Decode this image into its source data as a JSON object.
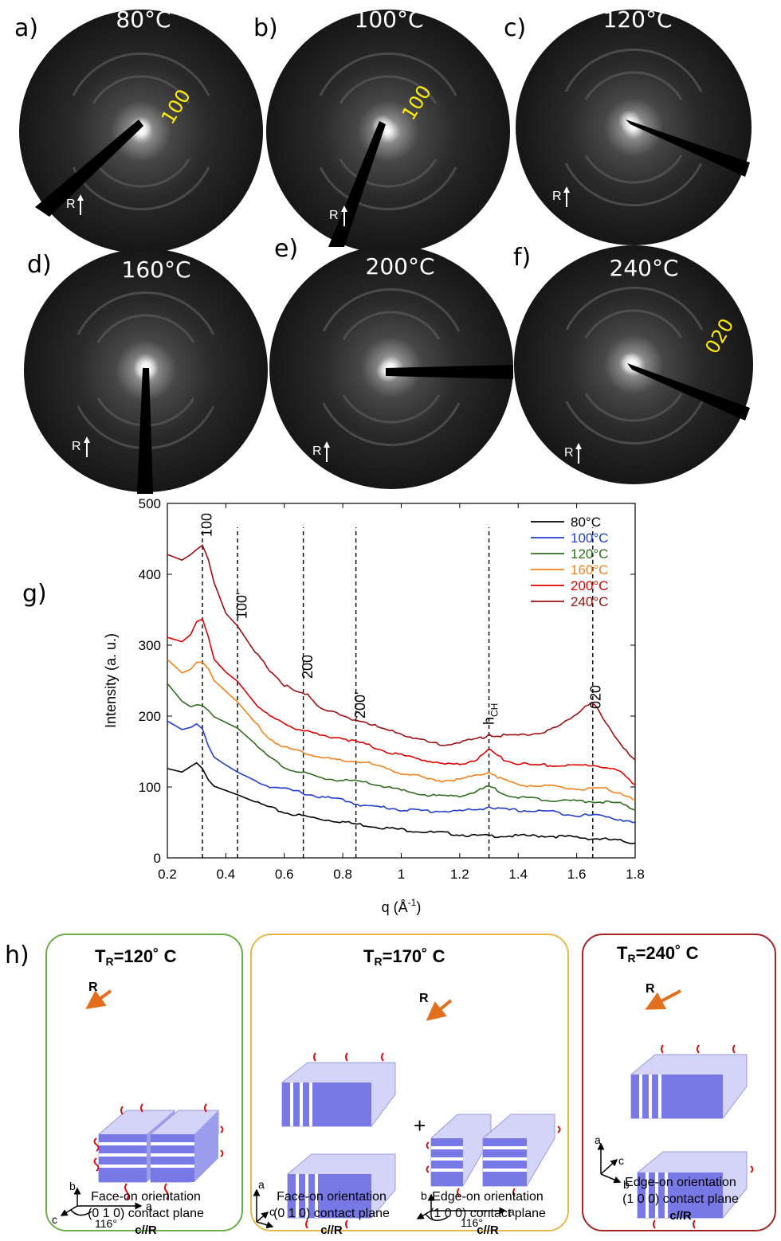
{
  "diffraction_panels": [
    {
      "letter": "a)",
      "temp": "80°C",
      "peak": "100"
    },
    {
      "letter": "b)",
      "temp": "100°C",
      "peak": "100"
    },
    {
      "letter": "c)",
      "temp": "120°C",
      "peak": ""
    },
    {
      "letter": "d)",
      "temp": "160°C",
      "peak": ""
    },
    {
      "letter": "e)",
      "temp": "200°C",
      "peak": ""
    },
    {
      "letter": "f)",
      "temp": "240°C",
      "peak": "020"
    }
  ],
  "rubbing_label": "R",
  "chart_data": {
    "panel_label": "g)",
    "type": "line",
    "xlabel": "q (Å-1)",
    "ylabel": "Intensity (a. u.)",
    "xlim": [
      0.2,
      1.8
    ],
    "ylim": [
      0,
      500
    ],
    "xticks": [
      "0.2",
      "0.4",
      "0.6",
      "0.8",
      "1",
      "1.2",
      "1.4",
      "1.6",
      "1.8"
    ],
    "yticks": [
      "0",
      "100",
      "200",
      "300",
      "400",
      "500"
    ],
    "x": [
      0.2,
      0.25,
      0.28,
      0.3,
      0.32,
      0.34,
      0.36,
      0.4,
      0.44,
      0.5,
      0.55,
      0.6,
      0.65,
      0.68,
      0.72,
      0.8,
      0.84,
      0.88,
      0.95,
      1.0,
      1.05,
      1.1,
      1.15,
      1.2,
      1.25,
      1.28,
      1.3,
      1.32,
      1.35,
      1.4,
      1.45,
      1.5,
      1.55,
      1.6,
      1.63,
      1.65,
      1.67,
      1.7,
      1.75,
      1.8
    ],
    "series": [
      {
        "name": "80°C",
        "color": "#000000",
        "values": [
          126,
          121,
          129,
          134,
          126,
          110,
          101,
          95,
          89,
          79,
          71,
          64,
          60,
          58,
          55,
          51,
          48,
          46,
          42,
          40,
          38,
          36,
          35,
          33,
          31,
          31,
          31,
          31,
          31,
          31,
          31,
          31,
          30,
          29,
          28,
          27,
          27,
          26,
          24,
          21
        ]
      },
      {
        "name": "100°C",
        "color": "#1f3fc8",
        "values": [
          193,
          181,
          184,
          189,
          182,
          158,
          142,
          131,
          121,
          109,
          101,
          97,
          93,
          90,
          86,
          82,
          77,
          73,
          71,
          68,
          67,
          66,
          66,
          66,
          68,
          70,
          72,
          70,
          68,
          67,
          66,
          66,
          63,
          60,
          60,
          60,
          60,
          59,
          54,
          49
        ]
      },
      {
        "name": "120°C",
        "color": "#2e6d1e",
        "values": [
          246,
          221,
          213,
          216,
          215,
          208,
          199,
          191,
          183,
          161,
          141,
          128,
          121,
          118,
          113,
          109,
          108,
          106,
          100,
          95,
          91,
          88,
          87,
          88,
          92,
          97,
          101,
          97,
          91,
          85,
          84,
          82,
          81,
          80,
          80,
          80,
          79,
          79,
          76,
          68
        ]
      },
      {
        "name": "160°C",
        "color": "#f0821e",
        "values": [
          280,
          261,
          266,
          276,
          276,
          267,
          250,
          235,
          220,
          191,
          168,
          156,
          151,
          147,
          143,
          136,
          136,
          135,
          125,
          120,
          116,
          110,
          109,
          111,
          115,
          119,
          122,
          117,
          110,
          103,
          102,
          101,
          99,
          97,
          97,
          97,
          97,
          97,
          92,
          80
        ]
      },
      {
        "name": "200°C",
        "color": "#e00000",
        "values": [
          311,
          305,
          315,
          333,
          337,
          312,
          280,
          262,
          249,
          218,
          199,
          190,
          181,
          179,
          173,
          169,
          164,
          160,
          150,
          145,
          141,
          136,
          132,
          132,
          138,
          145,
          152,
          146,
          139,
          133,
          131,
          131,
          130,
          130,
          131,
          131,
          130,
          128,
          121,
          103
        ]
      },
      {
        "name": "240°C",
        "color": "#9c0f10",
        "values": [
          428,
          420,
          428,
          435,
          441,
          421,
          388,
          345,
          327,
          290,
          265,
          244,
          232,
          230,
          213,
          200,
          195,
          191,
          180,
          175,
          169,
          162,
          160,
          163,
          167,
          170,
          175,
          172,
          173,
          173,
          175,
          179,
          188,
          204,
          215,
          219,
          210,
          188,
          162,
          137
        ]
      }
    ],
    "annotations": [
      {
        "label": "100",
        "x": 0.32
      },
      {
        "label": "100'",
        "x": 0.44
      },
      {
        "label": "200",
        "x": 0.665
      },
      {
        "label": "200'",
        "x": 0.845
      },
      {
        "label": "hCH",
        "x": 1.3
      },
      {
        "label": "020",
        "x": 1.655
      }
    ],
    "legend_position": "top-right"
  },
  "panel_h": {
    "letter": "h)",
    "boxes": [
      {
        "title_pre": "T",
        "title_sub": "R",
        "title_post": "=120˚  C",
        "color": "#6aae4a",
        "captions": [
          {
            "line1": "Face-on orientation",
            "line2": "(0 1 0) contact plane",
            "line3": "c//R"
          }
        ],
        "axes": {
          "a": "a",
          "b": "b",
          "c": "c",
          "angle": "116°"
        }
      },
      {
        "title_pre": "T",
        "title_sub": "R",
        "title_post": "=170˚  C",
        "color": "#e6b84a",
        "captions": [
          {
            "line1": "Face-on orientation",
            "line2": "(0 1 0) contact plane",
            "line3": "c//R"
          },
          {
            "line1": "Edge-on orientation",
            "line2": "(1 0 0) contact plane",
            "line3": "c//R"
          }
        ],
        "plus": "+",
        "axes": {
          "a": "a",
          "b": "b",
          "c": "c",
          "angle": "116°"
        }
      },
      {
        "title_pre": "T",
        "title_sub": "R",
        "title_post": "=240˚  C",
        "color": "#a52222",
        "captions": [
          {
            "line1": "Edge-on orientation",
            "line2": "(1 0 0) contact plane",
            "line3": "c//R"
          }
        ],
        "axes": {
          "a": "a",
          "b": "b",
          "c": "c"
        }
      }
    ]
  }
}
